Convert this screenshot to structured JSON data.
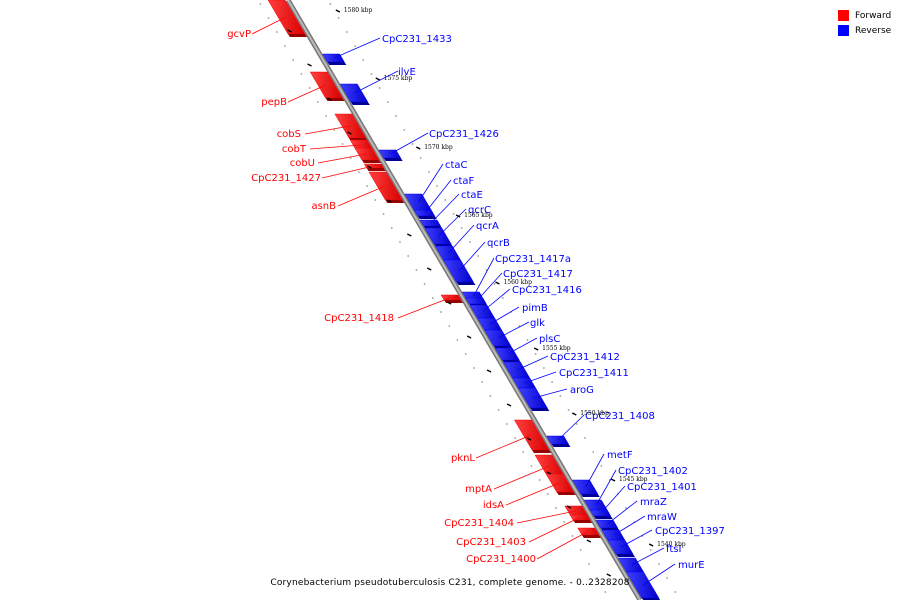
{
  "legend": {
    "forward_label": "Forward",
    "reverse_label": "Reverse",
    "forward_color": "#ff0000",
    "reverse_color": "#0000ff"
  },
  "caption": "Corynebacterium pseudotuberculosis C231, complete genome. - 0..2328208",
  "ticks": [
    "1580 kbp",
    "1575 kbp",
    "1570 kbp",
    "1565 kbp",
    "1560 kbp",
    "1555 kbp",
    "1550 kbp",
    "1545 kbp",
    "1540 kbp"
  ],
  "forward_genes": [
    "gcvP",
    "pepB",
    "cobS",
    "cobT",
    "cobU",
    "CpC231_1427",
    "asnB",
    "CpC231_1418",
    "pknL",
    "mptA",
    "idsA",
    "CpC231_1404",
    "CpC231_1403",
    "CpC231_1400"
  ],
  "reverse_genes": [
    "CpC231_1433",
    "ilvE",
    "CpC231_1426",
    "ctaC",
    "ctaF",
    "ctaE",
    "qcrC",
    "qcrA",
    "qcrB",
    "CpC231_1417a",
    "CpC231_1417",
    "CpC231_1416",
    "pimB",
    "glk",
    "plsC",
    "CpC231_1412",
    "CpC231_1411",
    "aroG",
    "CpC231_1408",
    "metF",
    "CpC231_1402",
    "CpC231_1401",
    "mraZ",
    "mraW",
    "CpC231_1397",
    "ftsI",
    "murE"
  ]
}
